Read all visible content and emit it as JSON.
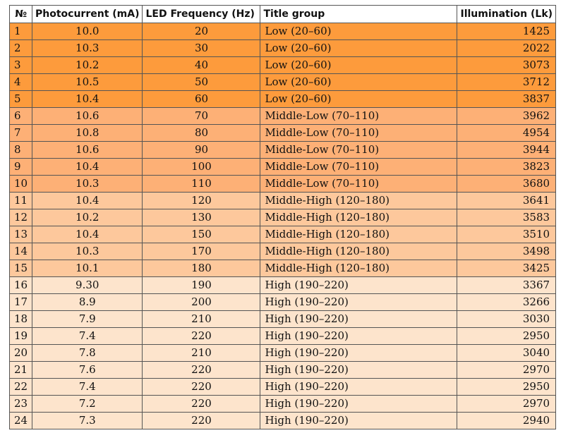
{
  "table": {
    "headers": [
      "№",
      "Photocurrent (mA)",
      "LED Frequency (Hz)",
      "Title group",
      "Illumination (Lk)"
    ],
    "colors": {
      "low": "#fd9b3c",
      "middle_low": "#fdb076",
      "middle_high": "#fdc89c",
      "high": "#fde4cc"
    },
    "rows": [
      {
        "n": "1",
        "current": "10.0",
        "freq": "20",
        "group": "Low (20–60)",
        "illum": "1425",
        "shade": "g-low"
      },
      {
        "n": "2",
        "current": "10.3",
        "freq": "30",
        "group": "Low (20–60)",
        "illum": "2022",
        "shade": "g-low"
      },
      {
        "n": "3",
        "current": "10.2",
        "freq": "40",
        "group": "Low (20–60)",
        "illum": "3073",
        "shade": "g-low"
      },
      {
        "n": "4",
        "current": "10.5",
        "freq": "50",
        "group": "Low (20–60)",
        "illum": "3712",
        "shade": "g-low"
      },
      {
        "n": "5",
        "current": "10.4",
        "freq": "60",
        "group": "Low (20–60)",
        "illum": "3837",
        "shade": "g-low"
      },
      {
        "n": "6",
        "current": "10.6",
        "freq": "70",
        "group": "Middle-Low (70–110)",
        "illum": "3962",
        "shade": "g-midlow"
      },
      {
        "n": "7",
        "current": "10.8",
        "freq": "80",
        "group": "Middle-Low (70–110)",
        "illum": "4954",
        "shade": "g-midlow"
      },
      {
        "n": "8",
        "current": "10.6",
        "freq": "90",
        "group": "Middle-Low (70–110)",
        "illum": "3944",
        "shade": "g-midlow"
      },
      {
        "n": "9",
        "current": "10.4",
        "freq": "100",
        "group": "Middle-Low (70–110)",
        "illum": "3823",
        "shade": "g-midlow"
      },
      {
        "n": "10",
        "current": "10.3",
        "freq": "110",
        "group": "Middle-Low (70–110)",
        "illum": "3680",
        "shade": "g-midlow"
      },
      {
        "n": "11",
        "current": "10.4",
        "freq": "120",
        "group": "Middle-High (120–180)",
        "illum": "3641",
        "shade": "g-midhigh"
      },
      {
        "n": "12",
        "current": "10.2",
        "freq": "130",
        "group": "Middle-High (120–180)",
        "illum": "3583",
        "shade": "g-midhigh"
      },
      {
        "n": "13",
        "current": "10.4",
        "freq": "150",
        "group": "Middle-High (120–180)",
        "illum": "3510",
        "shade": "g-midhigh"
      },
      {
        "n": "14",
        "current": "10.3",
        "freq": "170",
        "group": "Middle-High (120–180)",
        "illum": "3498",
        "shade": "g-midhigh"
      },
      {
        "n": "15",
        "current": "10.1",
        "freq": "180",
        "group": "Middle-High (120–180)",
        "illum": "3425",
        "shade": "g-midhigh"
      },
      {
        "n": "16",
        "current": "9.30",
        "freq": "190",
        "group": "High (190–220)",
        "illum": "3367",
        "shade": "g-high"
      },
      {
        "n": "17",
        "current": "8.9",
        "freq": "200",
        "group": "High (190–220)",
        "illum": "3266",
        "shade": "g-high"
      },
      {
        "n": "18",
        "current": "7.9",
        "freq": "210",
        "group": "High (190–220)",
        "illum": "3030",
        "shade": "g-high"
      },
      {
        "n": "19",
        "current": "7.4",
        "freq": "220",
        "group": "High (190–220)",
        "illum": "2950",
        "shade": "g-high"
      },
      {
        "n": "20",
        "current": "7.8",
        "freq": "210",
        "group": "High (190–220)",
        "illum": "3040",
        "shade": "g-high"
      },
      {
        "n": "21",
        "current": "7.6",
        "freq": "220",
        "group": "High (190–220)",
        "illum": "2970",
        "shade": "g-high"
      },
      {
        "n": "22",
        "current": "7.4",
        "freq": "220",
        "group": "High (190–220)",
        "illum": "2950",
        "shade": "g-high"
      },
      {
        "n": "23",
        "current": "7.2",
        "freq": "220",
        "group": "High (190–220)",
        "illum": "2970",
        "shade": "g-high"
      },
      {
        "n": "24",
        "current": "7.3",
        "freq": "220",
        "group": "High (190–220)",
        "illum": "2940",
        "shade": "g-high"
      }
    ]
  }
}
